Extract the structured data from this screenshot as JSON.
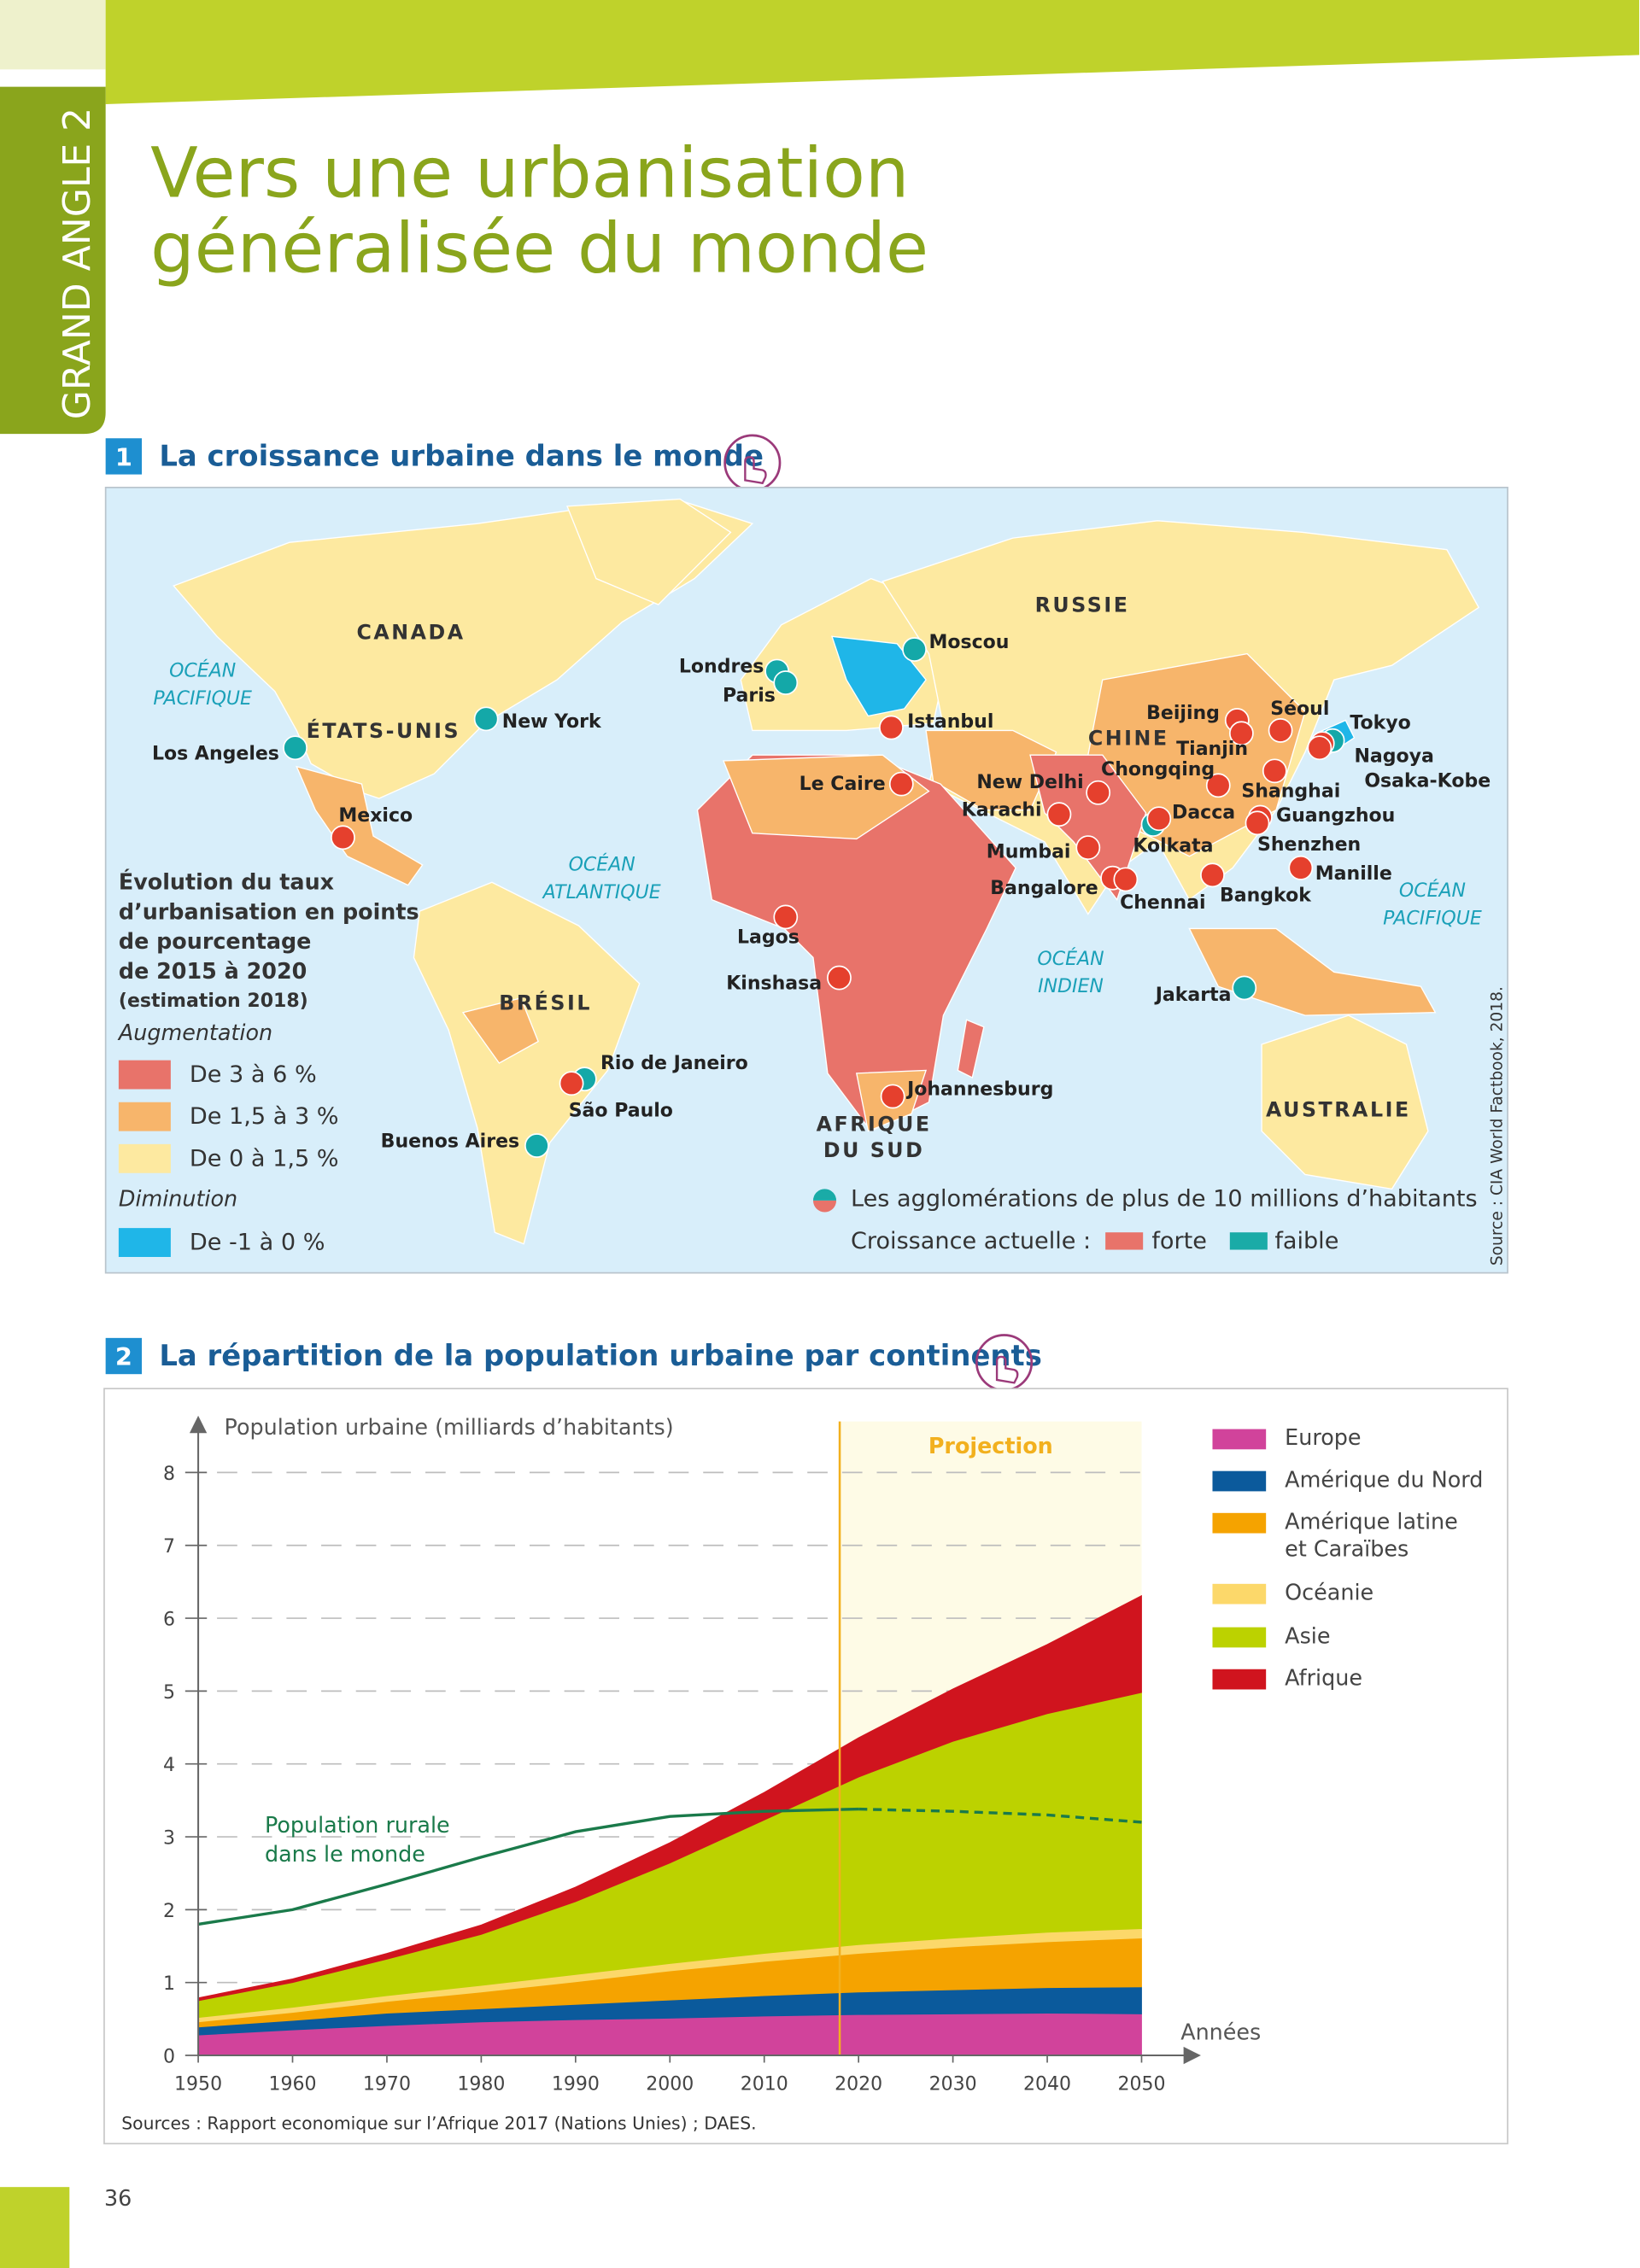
{
  "header": {
    "tab": "GRAND ANGLE 2",
    "title_lines": [
      "Vers une urbanisation",
      "généralisée du monde"
    ]
  },
  "sections": [
    {
      "number": "1",
      "title": "La croissance urbaine dans le monde"
    },
    {
      "number": "2"
    }
  ],
  "map": {
    "regions": [
      {
        "label_lines": [
          "CANADA"
        ]
      },
      {
        "label_lines": [
          "ÉTATS-UNIS"
        ]
      },
      {
        "label_lines": [
          "RUSSIE"
        ]
      },
      {
        "label_lines": [
          "CHINE"
        ]
      },
      {
        "label_lines": [
          "BRÉSIL"
        ]
      },
      {
        "label_lines": [
          "AFRIQUE",
          "DU SUD"
        ]
      },
      {
        "label_lines": [
          "AUSTRALIE"
        ]
      }
    ],
    "oceans": [
      {
        "label_lines": [
          "OCÉAN",
          "PACIFIQUE"
        ]
      },
      {
        "label_lines": [
          "OCÉAN",
          "ATLANTIQUE"
        ]
      },
      {
        "label_lines": [
          "OCÉAN",
          "INDIEN"
        ]
      },
      {
        "label_lines": [
          "OCÉAN",
          "PACIFIQUE"
        ]
      }
    ],
    "cities": [
      {
        "name": "Los Angeles",
        "color": "#14a8a8"
      },
      {
        "name": "New York",
        "color": "#14a8a8"
      },
      {
        "name": "Mexico",
        "color": "#e5402d"
      },
      {
        "name": "Londres",
        "color": "#14a8a8"
      },
      {
        "name": "Paris",
        "color": "#14a8a8"
      },
      {
        "name": "Moscou",
        "color": "#14a8a8"
      },
      {
        "name": "Istanbul",
        "color": "#e5402d"
      },
      {
        "name": "Le Caire",
        "color": "#e5402d"
      },
      {
        "name": "Lagos",
        "color": "#e5402d"
      },
      {
        "name": "Kinshasa",
        "color": "#e5402d"
      },
      {
        "name": "Johannesburg",
        "color": "#e5402d"
      },
      {
        "name": "Rio de Janeiro",
        "color": "#14a8a8"
      },
      {
        "name": "São Paulo",
        "color": "#e5402d"
      },
      {
        "name": "Buenos Aires",
        "color": "#14a8a8"
      },
      {
        "name": "Karachi",
        "color": "#e5402d"
      },
      {
        "name": "New Delhi",
        "color": "#e5402d"
      },
      {
        "name": "Mumbai",
        "color": "#e5402d"
      },
      {
        "name": "Bangalore",
        "color": "#e5402d"
      },
      {
        "name": "Chennai",
        "color": "#e5402d"
      },
      {
        "name": "Kolkata",
        "color": "#14a8a8"
      },
      {
        "name": "Dacca",
        "color": "#e5402d"
      },
      {
        "name": "Bangkok",
        "color": "#e5402d"
      },
      {
        "name": "Jakarta",
        "color": "#14a8a8"
      },
      {
        "name": "Beijing",
        "color": "#e5402d"
      },
      {
        "name": "Tianjin",
        "color": "#e5402d"
      },
      {
        "name": "Séoul",
        "color": "#e5402d"
      },
      {
        "name": "Tokyo",
        "color": "#14a8a8"
      },
      {
        "name": "Nagoya",
        "color": "#e5402d"
      },
      {
        "name": "Osaka-Kobe",
        "color": "#e5402d"
      },
      {
        "name": "Shanghai",
        "color": "#e5402d"
      },
      {
        "name": "Chongqing",
        "color": "#e5402d"
      },
      {
        "name": "Guangzhou",
        "color": "#e5402d"
      },
      {
        "name": "Shenzhen",
        "color": "#e5402d"
      },
      {
        "name": "Manille",
        "color": "#e5402d"
      }
    ],
    "legend": {
      "title_lines": [
        "Évolution du taux",
        "d’urbanisation en points",
        "de pourcentage",
        "de 2015 à 2020"
      ],
      "note": "(estimation 2018)",
      "increase": "Augmentation",
      "classes": [
        {
          "label": "De 3 à 6 %",
          "color": "#e8736a"
        },
        {
          "label": "De 1,5 à 3 %",
          "color": "#f7b56b"
        },
        {
          "label": "De 0 à 1,5 %",
          "color": "#fde9a0"
        }
      ],
      "decrease": "Diminution",
      "decrease_classes": [
        {
          "label": "De -1 à 0 %",
          "color": "#1fb6e8"
        }
      ],
      "agglo": "Les agglomérations de plus de 10 millions d’habitants",
      "growth_label": "Croissance actuelle :",
      "growth": [
        {
          "label": "forte",
          "color": "#e8736a"
        },
        {
          "label": "faible",
          "color": "#1aaba7"
        }
      ]
    },
    "source": "Source : CIA World Factbook, 2018."
  },
  "chart_data": {
    "type": "area",
    "stacked": true,
    "title": "La répartition de la population urbaine par continents",
    "y_label": "Population urbaine (milliards d’habitants)",
    "x_label": "Années",
    "x": [
      1950,
      1960,
      1970,
      1980,
      1990,
      2000,
      2010,
      2020,
      2030,
      2040,
      2050
    ],
    "xlim": [
      1950,
      2050
    ],
    "xticks": [
      1950,
      1960,
      1970,
      1980,
      1990,
      2000,
      2010,
      2020,
      2030,
      2040,
      2050
    ],
    "ylim": [
      0,
      8.7
    ],
    "yticks": [
      0,
      1,
      2,
      3,
      4,
      5,
      6,
      7,
      8
    ],
    "grid": true,
    "legend": "right",
    "series": [
      {
        "name": "Europe",
        "color": "#d1439b",
        "values": [
          0.28,
          0.35,
          0.41,
          0.46,
          0.49,
          0.51,
          0.54,
          0.56,
          0.57,
          0.58,
          0.57
        ]
      },
      {
        "name": "Amérique du Nord",
        "color": "#0b5a9c",
        "values": [
          0.11,
          0.13,
          0.17,
          0.18,
          0.21,
          0.25,
          0.28,
          0.31,
          0.33,
          0.35,
          0.37
        ]
      },
      {
        "name": "Amérique latine et Caraïbes",
        "color": "#f5a300",
        "values": [
          0.07,
          0.11,
          0.16,
          0.23,
          0.31,
          0.4,
          0.47,
          0.53,
          0.59,
          0.63,
          0.67
        ]
      },
      {
        "name": "Océanie",
        "color": "#fcd86a",
        "values": [
          0.06,
          0.07,
          0.08,
          0.09,
          0.1,
          0.1,
          0.11,
          0.12,
          0.12,
          0.13,
          0.13
        ]
      },
      {
        "name": "Asie",
        "color": "#bcd200",
        "values": [
          0.23,
          0.34,
          0.5,
          0.7,
          1.0,
          1.38,
          1.83,
          2.3,
          2.7,
          3.0,
          3.24
        ]
      },
      {
        "name": "Afrique",
        "color": "#d0141e",
        "values": [
          0.04,
          0.05,
          0.08,
          0.13,
          0.2,
          0.28,
          0.38,
          0.54,
          0.72,
          0.95,
          1.33
        ]
      }
    ],
    "rural": {
      "label_lines": [
        "Population rurale",
        "dans le monde"
      ],
      "color": "#1a7a4a",
      "values": [
        1.8,
        2.0,
        2.35,
        2.72,
        3.07,
        3.28,
        3.35,
        3.38,
        3.35,
        3.3,
        3.2
      ]
    },
    "projection": {
      "label": "Projection",
      "start": 2018,
      "color": "#f2b01e",
      "fill": "#fefbe6"
    },
    "source": "Sources : Rapport economique sur l’Afrique 2017 (Nations Unies) ; DAES."
  },
  "page_number": "36"
}
